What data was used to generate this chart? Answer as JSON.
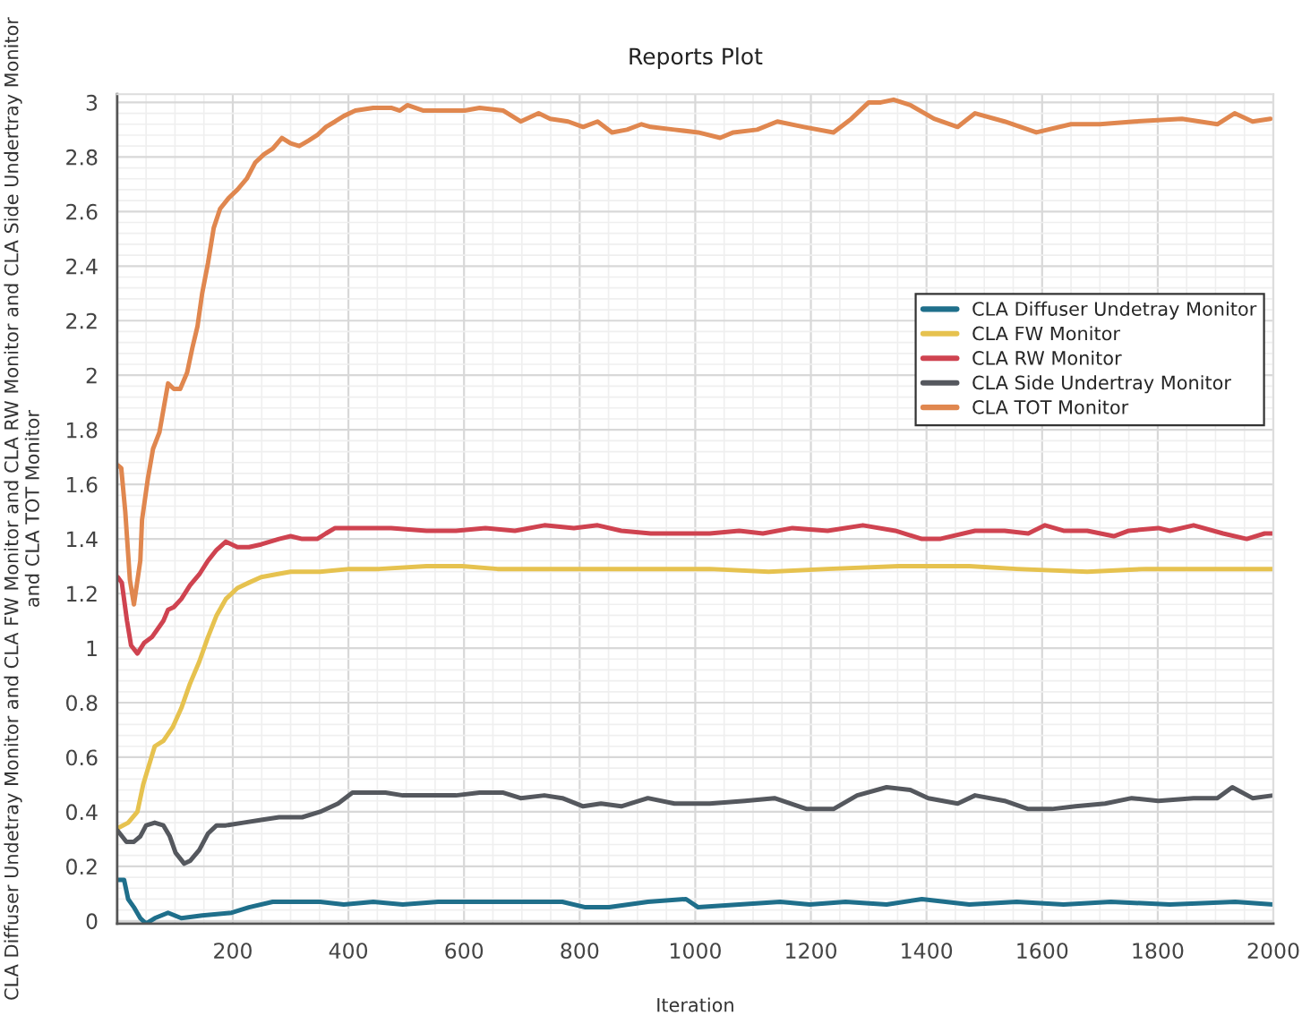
{
  "chart_data": {
    "type": "line",
    "title": "Reports Plot",
    "xlabel": "Iteration",
    "ylabel": "CLA Diffuser Undetray Monitor and CLA FW Monitor and CLA RW Monitor and CLA Side Undertray Monitor and CLA TOT Monitor",
    "xlim": [
      0,
      2000
    ],
    "xticks": [
      200,
      400,
      600,
      800,
      1000,
      1200,
      1400,
      1600,
      1800,
      2000
    ],
    "ylim": [
      -0.01,
      3.03
    ],
    "yticks": [
      0,
      0.2,
      0.4,
      0.6,
      0.8,
      1,
      1.2,
      1.4,
      1.6,
      1.8,
      2,
      2.2,
      2.4,
      2.6,
      2.8,
      3
    ],
    "grid": true,
    "legend": "right",
    "marker": "none",
    "line_style": "solid",
    "series": [
      {
        "name": "CLA Diffuser Undetray Monitor",
        "color": "#1f6f8b",
        "x": [
          1,
          12,
          19,
          29,
          40,
          50,
          65,
          88,
          111,
          147,
          198,
          228,
          269,
          300,
          351,
          392,
          443,
          494,
          555,
          617,
          668,
          719,
          770,
          810,
          851,
          918,
          984,
          1005,
          1076,
          1147,
          1198,
          1260,
          1331,
          1392,
          1474,
          1556,
          1637,
          1719,
          1821,
          1934,
          2000
        ],
        "values": [
          0.15,
          0.15,
          0.08,
          0.05,
          0.01,
          -0.01,
          0.01,
          0.03,
          0.01,
          0.02,
          0.03,
          0.05,
          0.07,
          0.07,
          0.07,
          0.06,
          0.07,
          0.06,
          0.07,
          0.07,
          0.07,
          0.07,
          0.07,
          0.05,
          0.05,
          0.07,
          0.08,
          0.05,
          0.06,
          0.07,
          0.06,
          0.07,
          0.06,
          0.08,
          0.06,
          0.07,
          0.06,
          0.07,
          0.06,
          0.07,
          0.06
        ]
      },
      {
        "name": "CLA FW Monitor",
        "color": "#e6c24f",
        "x": [
          1,
          19,
          35,
          45,
          55,
          65,
          80,
          96,
          111,
          126,
          142,
          157,
          172,
          188,
          208,
          228,
          249,
          274,
          300,
          351,
          402,
          453,
          535,
          597,
          658,
          719,
          780,
          841,
          923,
          1025,
          1127,
          1229,
          1352,
          1474,
          1556,
          1678,
          1780,
          1903,
          2000
        ],
        "values": [
          0.34,
          0.36,
          0.4,
          0.5,
          0.57,
          0.64,
          0.66,
          0.71,
          0.78,
          0.87,
          0.95,
          1.04,
          1.12,
          1.18,
          1.22,
          1.24,
          1.26,
          1.27,
          1.28,
          1.28,
          1.29,
          1.29,
          1.3,
          1.3,
          1.29,
          1.29,
          1.29,
          1.29,
          1.29,
          1.29,
          1.28,
          1.29,
          1.3,
          1.3,
          1.29,
          1.28,
          1.29,
          1.29,
          1.29
        ]
      },
      {
        "name": "CLA RW Monitor",
        "color": "#cf4350",
        "x": [
          1,
          8,
          17,
          24,
          35,
          47,
          60,
          70,
          80,
          88,
          98,
          111,
          126,
          142,
          157,
          172,
          188,
          208,
          228,
          249,
          280,
          300,
          320,
          346,
          361,
          377,
          433,
          474,
          535,
          586,
          637,
          688,
          739,
          790,
          831,
          872,
          923,
          974,
          1025,
          1076,
          1117,
          1168,
          1229,
          1290,
          1346,
          1392,
          1423,
          1484,
          1535,
          1576,
          1605,
          1637,
          1678,
          1724,
          1750,
          1801,
          1821,
          1862,
          1913,
          1954,
          1985,
          2000
        ],
        "values": [
          1.26,
          1.24,
          1.1,
          1.01,
          0.98,
          1.02,
          1.04,
          1.07,
          1.1,
          1.14,
          1.15,
          1.18,
          1.23,
          1.27,
          1.32,
          1.36,
          1.39,
          1.37,
          1.37,
          1.38,
          1.4,
          1.41,
          1.4,
          1.4,
          1.42,
          1.44,
          1.44,
          1.44,
          1.43,
          1.43,
          1.44,
          1.43,
          1.45,
          1.44,
          1.45,
          1.43,
          1.42,
          1.42,
          1.42,
          1.43,
          1.42,
          1.44,
          1.43,
          1.45,
          1.43,
          1.4,
          1.4,
          1.43,
          1.43,
          1.42,
          1.45,
          1.43,
          1.43,
          1.41,
          1.43,
          1.44,
          1.43,
          1.45,
          1.42,
          1.4,
          1.42,
          1.42
        ]
      },
      {
        "name": "CLA Side Undertray Monitor",
        "color": "#55585e",
        "x": [
          1,
          16,
          29,
          40,
          50,
          65,
          80,
          91,
          101,
          116,
          126,
          142,
          157,
          172,
          188,
          218,
          249,
          280,
          320,
          351,
          382,
          407,
          433,
          464,
          494,
          535,
          586,
          627,
          668,
          698,
          739,
          770,
          806,
          837,
          872,
          918,
          964,
          1025,
          1086,
          1137,
          1193,
          1239,
          1280,
          1331,
          1372,
          1403,
          1454,
          1484,
          1535,
          1576,
          1617,
          1658,
          1709,
          1755,
          1801,
          1862,
          1903,
          1929,
          1964,
          2000
        ],
        "values": [
          0.33,
          0.29,
          0.29,
          0.31,
          0.35,
          0.36,
          0.35,
          0.31,
          0.25,
          0.21,
          0.22,
          0.26,
          0.32,
          0.35,
          0.35,
          0.36,
          0.37,
          0.38,
          0.38,
          0.4,
          0.43,
          0.47,
          0.47,
          0.47,
          0.46,
          0.46,
          0.46,
          0.47,
          0.47,
          0.45,
          0.46,
          0.45,
          0.42,
          0.43,
          0.42,
          0.45,
          0.43,
          0.43,
          0.44,
          0.45,
          0.41,
          0.41,
          0.46,
          0.49,
          0.48,
          0.45,
          0.43,
          0.46,
          0.44,
          0.41,
          0.41,
          0.42,
          0.43,
          0.45,
          0.44,
          0.45,
          0.45,
          0.49,
          0.45,
          0.46
        ]
      },
      {
        "name": "CLA TOT Monitor",
        "color": "#e0874f",
        "x": [
          1,
          7,
          14,
          22,
          29,
          40,
          43,
          53,
          62,
          73,
          88,
          98,
          109,
          121,
          130,
          139,
          147,
          157,
          167,
          178,
          193,
          208,
          224,
          239,
          254,
          269,
          285,
          300,
          315,
          331,
          346,
          361,
          377,
          392,
          412,
          443,
          474,
          489,
          502,
          530,
          576,
          601,
          627,
          668,
          698,
          729,
          749,
          780,
          806,
          831,
          856,
          882,
          907,
          923,
          964,
          1005,
          1043,
          1066,
          1107,
          1142,
          1188,
          1239,
          1270,
          1300,
          1321,
          1343,
          1372,
          1413,
          1454,
          1484,
          1535,
          1590,
          1650,
          1700,
          1760,
          1842,
          1903,
          1933,
          1964,
          1995
        ],
        "values": [
          1.67,
          1.66,
          1.5,
          1.25,
          1.16,
          1.32,
          1.47,
          1.62,
          1.73,
          1.79,
          1.97,
          1.95,
          1.95,
          2.01,
          2.1,
          2.18,
          2.3,
          2.41,
          2.54,
          2.61,
          2.65,
          2.68,
          2.72,
          2.78,
          2.81,
          2.83,
          2.87,
          2.85,
          2.84,
          2.86,
          2.88,
          2.91,
          2.93,
          2.95,
          2.97,
          2.98,
          2.98,
          2.97,
          2.99,
          2.97,
          2.97,
          2.97,
          2.98,
          2.97,
          2.93,
          2.96,
          2.94,
          2.93,
          2.91,
          2.93,
          2.89,
          2.9,
          2.92,
          2.91,
          2.9,
          2.89,
          2.87,
          2.89,
          2.9,
          2.93,
          2.91,
          2.89,
          2.94,
          3.0,
          3.0,
          3.01,
          2.99,
          2.94,
          2.91,
          2.96,
          2.93,
          2.89,
          2.92,
          2.92,
          2.93,
          2.94,
          2.92,
          2.96,
          2.93,
          2.94
        ]
      }
    ]
  }
}
